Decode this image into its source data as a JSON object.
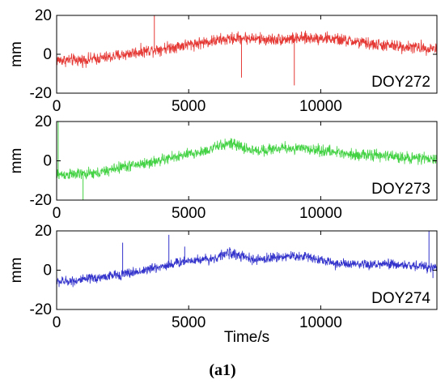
{
  "chart_data": [
    {
      "type": "line",
      "id": "doy272",
      "label": "DOY272",
      "ylabel": "mm",
      "xlabel": "",
      "xlim": [
        0,
        14400
      ],
      "ylim": [
        -20,
        20
      ],
      "xticks": [
        0,
        5000,
        10000
      ],
      "yticks": [
        -20,
        0,
        20
      ],
      "color": "#e53935",
      "noise": 2.2,
      "trend": {
        "x": [
          0,
          1000,
          2000,
          3000,
          4000,
          5000,
          6000,
          7000,
          8000,
          9000,
          10000,
          11000,
          12000,
          13000,
          14400
        ],
        "y": [
          -3,
          -3,
          -1.5,
          1,
          3,
          5,
          7,
          8.5,
          7.5,
          8,
          8.5,
          7,
          5,
          4,
          3
        ]
      },
      "spikes": [
        {
          "x": 3700,
          "y": 20
        },
        {
          "x": 7000,
          "y": -12
        },
        {
          "x": 9000,
          "y": -16
        }
      ]
    },
    {
      "type": "line",
      "id": "doy273",
      "label": "DOY273",
      "ylabel": "mm",
      "xlabel": "",
      "xlim": [
        0,
        14400
      ],
      "ylim": [
        -20,
        20
      ],
      "xticks": [
        0,
        5000,
        10000
      ],
      "yticks": [
        -20,
        0,
        20
      ],
      "color": "#43d243",
      "noise": 2.0,
      "trend": {
        "x": [
          0,
          500,
          1500,
          2500,
          3500,
          4500,
          5500,
          6500,
          7500,
          8500,
          9500,
          10500,
          11500,
          12500,
          14400
        ],
        "y": [
          -7,
          -7,
          -6.5,
          -3,
          -1,
          2,
          4.5,
          9,
          5,
          6.5,
          6,
          4.5,
          3,
          2.5,
          0.5
        ]
      },
      "spikes": [
        {
          "x": 60,
          "y": 20
        },
        {
          "x": 1000,
          "y": -20
        }
      ]
    },
    {
      "type": "line",
      "id": "doy274",
      "label": "DOY274",
      "ylabel": "mm",
      "xlabel": "Time/s",
      "xlim": [
        0,
        14400
      ],
      "ylim": [
        -20,
        20
      ],
      "xticks": [
        0,
        5000,
        10000
      ],
      "yticks": [
        -20,
        0,
        20
      ],
      "color": "#3333cc",
      "noise": 1.8,
      "trend": {
        "x": [
          0,
          1000,
          2000,
          3000,
          4000,
          5000,
          6000,
          6500,
          7500,
          8500,
          9500,
          10500,
          11500,
          12500,
          14400
        ],
        "y": [
          -6,
          -5,
          -3,
          -1,
          2,
          5,
          6,
          9,
          5,
          7,
          7,
          3.5,
          2.5,
          3,
          1.5
        ]
      },
      "spikes": [
        {
          "x": 2500,
          "y": 14
        },
        {
          "x": 4250,
          "y": 18
        },
        {
          "x": 4850,
          "y": 12
        },
        {
          "x": 14100,
          "y": 20
        },
        {
          "x": 14250,
          "y": -4
        }
      ]
    }
  ],
  "caption": "(a1)"
}
